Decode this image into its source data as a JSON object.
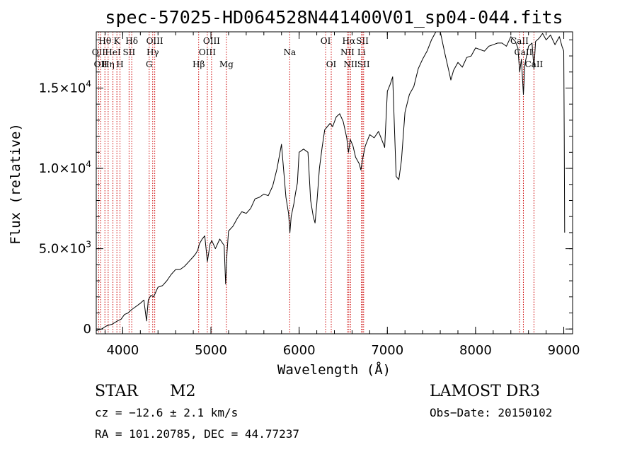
{
  "chart_data": {
    "type": "line",
    "title": "spec-57025-HD064528N441400V01_sp04-044.fits",
    "xlabel": "Wavelength (Å)",
    "ylabel": "Flux (relative)",
    "xlim": [
      3700,
      9100
    ],
    "ylim": [
      -300,
      18500
    ],
    "x_ticks": [
      {
        "value": 4000,
        "label": "4000"
      },
      {
        "value": 5000,
        "label": "5000"
      },
      {
        "value": 6000,
        "label": "6000"
      },
      {
        "value": 7000,
        "label": "7000"
      },
      {
        "value": 8000,
        "label": "8000"
      },
      {
        "value": 9000,
        "label": "9000"
      }
    ],
    "y_ticks": [
      {
        "value": 0,
        "mantissa": "0",
        "exponent": ""
      },
      {
        "value": 5000,
        "mantissa": "5.0×10",
        "exponent": "3"
      },
      {
        "value": 10000,
        "mantissa": "1.0×10",
        "exponent": "4"
      },
      {
        "value": 15000,
        "mantissa": "1.5×10",
        "exponent": "4"
      }
    ],
    "x_minor_step": 200,
    "y_minor_step": 1000,
    "series": [
      {
        "name": "spectrum",
        "color": "#000000",
        "x": [
          3700,
          3760,
          3820,
          3880,
          3940,
          3980,
          4020,
          4060,
          4100,
          4150,
          4200,
          4240,
          4270,
          4290,
          4320,
          4350,
          4400,
          4450,
          4500,
          4550,
          4600,
          4650,
          4700,
          4750,
          4800,
          4830,
          4850,
          4870,
          4900,
          4930,
          4960,
          4990,
          5010,
          5050,
          5100,
          5150,
          5167,
          5183,
          5200,
          5250,
          5300,
          5350,
          5400,
          5450,
          5500,
          5550,
          5600,
          5650,
          5700,
          5750,
          5800,
          5850,
          5880,
          5895,
          5910,
          5940,
          5960,
          5980,
          6000,
          6050,
          6100,
          6130,
          6160,
          6180,
          6200,
          6230,
          6260,
          6290,
          6320,
          6350,
          6380,
          6420,
          6460,
          6500,
          6540,
          6560,
          6580,
          6610,
          6640,
          6680,
          6700,
          6720,
          6750,
          6800,
          6850,
          6900,
          6950,
          6970,
          7000,
          7030,
          7060,
          7100,
          7130,
          7160,
          7200,
          7250,
          7300,
          7350,
          7400,
          7450,
          7500,
          7550,
          7580,
          7600,
          7650,
          7700,
          7720,
          7750,
          7800,
          7850,
          7900,
          7950,
          8000,
          8050,
          8100,
          8150,
          8200,
          8250,
          8300,
          8350,
          8400,
          8450,
          8480,
          8500,
          8520,
          8542,
          8560,
          8600,
          8640,
          8662,
          8680,
          8720,
          8760,
          8800,
          8850,
          8900,
          8950,
          8980,
          9000,
          9005,
          9010
        ],
        "y": [
          -100,
          0,
          200,
          300,
          500,
          600,
          900,
          1000,
          1200,
          1400,
          1600,
          1800,
          500,
          1800,
          2100,
          2000,
          2600,
          2700,
          3000,
          3400,
          3700,
          3700,
          3900,
          4200,
          4500,
          4700,
          4900,
          5300,
          5600,
          5800,
          4200,
          5300,
          5500,
          5000,
          5600,
          5200,
          2800,
          4800,
          6100,
          6400,
          6900,
          7300,
          7200,
          7500,
          8100,
          8200,
          8400,
          8300,
          8900,
          10000,
          11500,
          8200,
          7200,
          6000,
          7000,
          7800,
          8500,
          9100,
          11000,
          11200,
          11000,
          8000,
          7000,
          6600,
          7800,
          10000,
          11300,
          12400,
          12600,
          12800,
          12600,
          13200,
          13400,
          12900,
          11900,
          11000,
          11800,
          11400,
          10700,
          10300,
          9900,
          10600,
          11400,
          12100,
          11900,
          12300,
          11600,
          11300,
          14800,
          15200,
          15700,
          9500,
          9300,
          10500,
          13500,
          14600,
          15100,
          16200,
          16800,
          17300,
          18000,
          18700,
          19000,
          18600,
          17200,
          16000,
          15500,
          16100,
          16600,
          16300,
          16900,
          17000,
          17500,
          17400,
          17300,
          17600,
          17700,
          17800,
          17800,
          17600,
          18200,
          17900,
          17500,
          16000,
          16800,
          14600,
          16500,
          17600,
          17800,
          16200,
          17900,
          18100,
          18400,
          18000,
          18300,
          17700,
          18200,
          17600,
          17300,
          12000,
          6000
        ]
      }
    ],
    "spectral_lines": [
      {
        "wavelength": 3798,
        "label": "Hθ",
        "row": 1
      },
      {
        "wavelength": 3727,
        "label": "OII",
        "row": 2
      },
      {
        "wavelength": 3750,
        "label": "OII",
        "row": 3
      },
      {
        "wavelength": 3835,
        "label": "Hη",
        "row": 3
      },
      {
        "wavelength": 3889,
        "label": "HeI",
        "row": 2
      },
      {
        "wavelength": 3934,
        "label": "K",
        "row": 1
      },
      {
        "wavelength": 3969,
        "label": "H",
        "row": 3
      },
      {
        "wavelength": 4072,
        "label": "SII",
        "row": 2
      },
      {
        "wavelength": 4102,
        "label": "Hδ",
        "row": 1
      },
      {
        "wavelength": 4300,
        "label": "G",
        "row": 3
      },
      {
        "wavelength": 4340,
        "label": "Hγ",
        "row": 2
      },
      {
        "wavelength": 4363,
        "label": "OIII",
        "row": 1
      },
      {
        "wavelength": 4861,
        "label": "Hβ",
        "row": 3
      },
      {
        "wavelength": 4959,
        "label": "OIII",
        "row": 2
      },
      {
        "wavelength": 5007,
        "label": "OIII",
        "row": 1
      },
      {
        "wavelength": 5175,
        "label": "Mg",
        "row": 3
      },
      {
        "wavelength": 5893,
        "label": "Na",
        "row": 2
      },
      {
        "wavelength": 6300,
        "label": "OI",
        "row": 1
      },
      {
        "wavelength": 6364,
        "label": "OI",
        "row": 3
      },
      {
        "wavelength": 6548,
        "label": "NII",
        "row": 2
      },
      {
        "wavelength": 6563,
        "label": "Hα",
        "row": 1
      },
      {
        "wavelength": 6583,
        "label": "NII",
        "row": 3
      },
      {
        "wavelength": 6707,
        "label": "Li",
        "row": 2
      },
      {
        "wavelength": 6717,
        "label": "SII",
        "row": 1
      },
      {
        "wavelength": 6731,
        "label": "SII",
        "row": 3
      },
      {
        "wavelength": 8498,
        "label": "CaII",
        "row": 1
      },
      {
        "wavelength": 8542,
        "label": "CaII",
        "row": 2
      },
      {
        "wavelength": 8662,
        "label": "CaII",
        "row": 3
      }
    ],
    "line_color": "#cc0000"
  },
  "info": {
    "object_type": "STAR",
    "subclass": "M2",
    "survey": "LAMOST DR3",
    "cz": "cz = −12.6 ± 2.1 km/s",
    "obs_date": "Obs−Date: 20150102",
    "coords": "RA = 101.20785, DEC =  44.77237"
  }
}
